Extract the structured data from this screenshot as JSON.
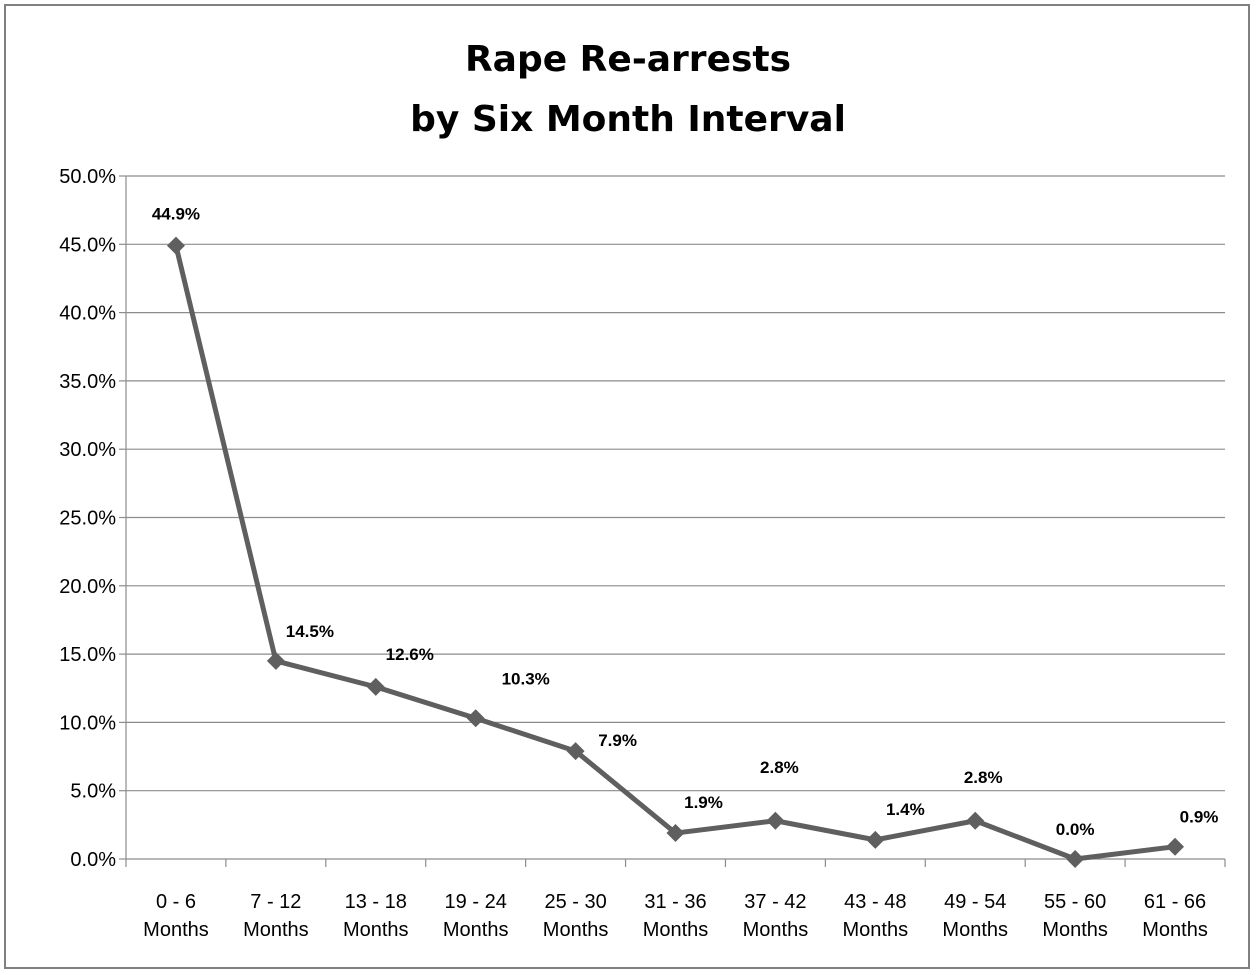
{
  "chart_data": {
    "type": "line",
    "title_lines": [
      "Rape Re-arrests",
      "by Six Month Interval"
    ],
    "categories": [
      [
        "0 - 6",
        "Months"
      ],
      [
        "7 - 12",
        "Months"
      ],
      [
        "13 - 18",
        "Months"
      ],
      [
        "19 - 24",
        "Months"
      ],
      [
        "25 - 30",
        "Months"
      ],
      [
        "31 - 36",
        "Months"
      ],
      [
        "37 - 42",
        "Months"
      ],
      [
        "43 - 48",
        "Months"
      ],
      [
        "49 - 54",
        "Months"
      ],
      [
        "55 - 60",
        "Months"
      ],
      [
        "61 - 66",
        "Months"
      ]
    ],
    "values": [
      44.9,
      14.5,
      12.6,
      10.3,
      7.9,
      1.9,
      2.8,
      1.4,
      2.8,
      0.0,
      0.9
    ],
    "data_labels": [
      "44.9%",
      "14.5%",
      "12.6%",
      "10.3%",
      "7.9%",
      "1.9%",
      "2.8%",
      "1.4%",
      "2.8%",
      "0.0%",
      "0.9%"
    ],
    "ylim": [
      0,
      50
    ],
    "yticks": [
      "0.0%",
      "5.0%",
      "10.0%",
      "15.0%",
      "20.0%",
      "25.0%",
      "30.0%",
      "35.0%",
      "40.0%",
      "45.0%",
      "50.0%"
    ],
    "grid": true,
    "legend": "none",
    "line_color": "#5f5f5f",
    "grid_color": "#8c8c8c"
  }
}
